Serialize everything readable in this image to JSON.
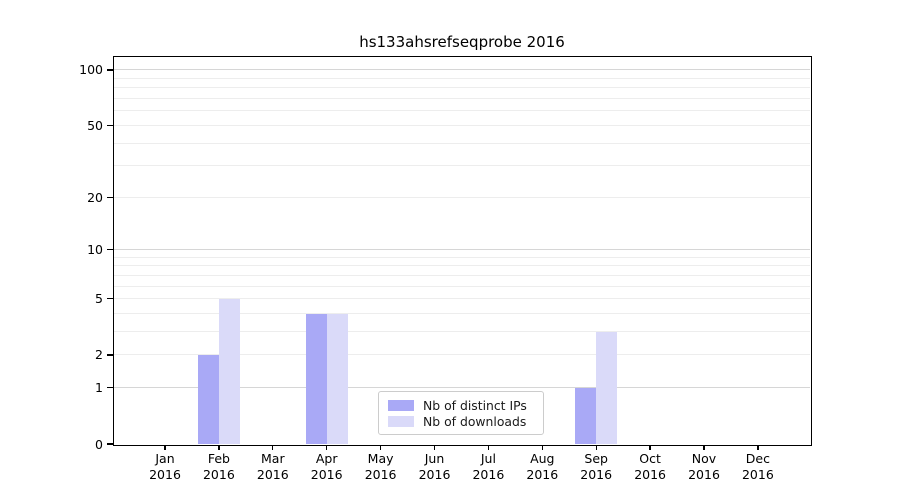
{
  "figure": {
    "title": "hs133ahsrefseqprobe 2016"
  },
  "chart_data": {
    "type": "bar",
    "title": "hs133ahsrefseqprobe 2016",
    "categories": [
      "Jan",
      "Feb",
      "Mar",
      "Apr",
      "May",
      "Jun",
      "Jul",
      "Aug",
      "Sep",
      "Oct",
      "Nov",
      "Dec"
    ],
    "year_label": "2016",
    "series": [
      {
        "name": "Nb of distinct IPs",
        "color": "#a9a9f6",
        "values": [
          0,
          2,
          0,
          4,
          0,
          0,
          0,
          0,
          1,
          0,
          0,
          0
        ]
      },
      {
        "name": "Nb of downloads",
        "color": "#dadaf9",
        "values": [
          0,
          5,
          0,
          4,
          0,
          0,
          0,
          0,
          3,
          0,
          0,
          0
        ]
      }
    ],
    "yscale": "log1p",
    "yticks": [
      0,
      1,
      2,
      5,
      10,
      20,
      50,
      100
    ],
    "ylim": [
      0,
      117.5
    ],
    "grid": {
      "major_values": [
        1,
        10,
        100
      ],
      "minor_values": [
        2,
        3,
        4,
        5,
        6,
        7,
        8,
        9,
        20,
        30,
        40,
        50,
        60,
        70,
        80,
        90
      ],
      "major_color": "#d6d6d6",
      "minor_color": "#ededed"
    },
    "legend": {
      "entries": [
        "Nb of distinct IPs",
        "Nb of downloads"
      ],
      "position": "bottom-center"
    },
    "axes_background": "#ffffff"
  }
}
